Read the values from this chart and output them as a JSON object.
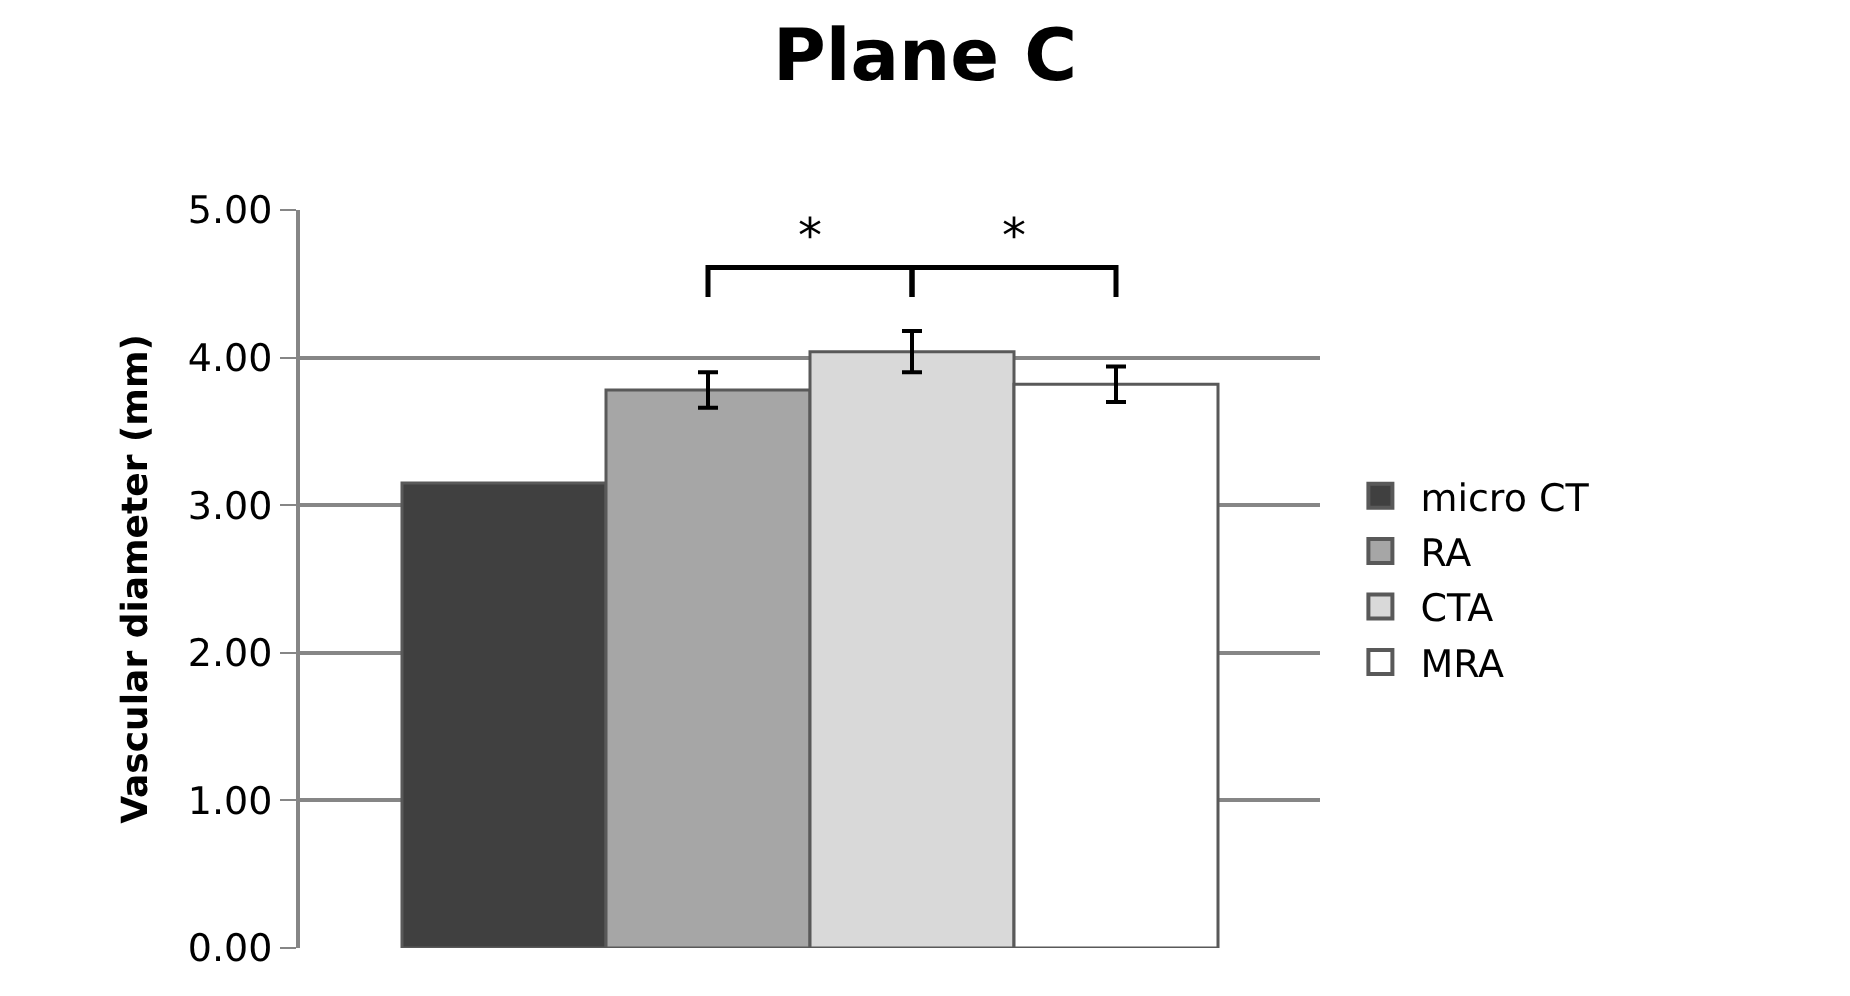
{
  "chart_data": {
    "type": "bar",
    "title": "Plane C",
    "ylabel": "Vascular diameter (mm)",
    "categories": [
      null
    ],
    "series": [
      {
        "name": "micro CT",
        "color": "#404040",
        "values": [
          3.15
        ]
      },
      {
        "name": "RA",
        "color": "#a6a6a6",
        "values": [
          3.78
        ],
        "errors": [
          0.12
        ]
      },
      {
        "name": "CTA",
        "color": "#d9d9d9",
        "values": [
          4.04
        ],
        "errors": [
          0.14
        ]
      },
      {
        "name": "MRA",
        "color": "#ffffff",
        "values": [
          3.82
        ],
        "errors": [
          0.12
        ]
      }
    ],
    "ylim": [
      0,
      5
    ],
    "yticks": [
      {
        "value": 0,
        "label": "0.00"
      },
      {
        "value": 1,
        "label": "1.00"
      },
      {
        "value": 2,
        "label": "2.00"
      },
      {
        "value": 3,
        "label": "3.00"
      },
      {
        "value": 4,
        "label": "4.00"
      },
      {
        "value": 5,
        "label": "5.00"
      }
    ],
    "grid": "y",
    "legend": "right",
    "annotations": [
      "*",
      "*"
    ]
  }
}
